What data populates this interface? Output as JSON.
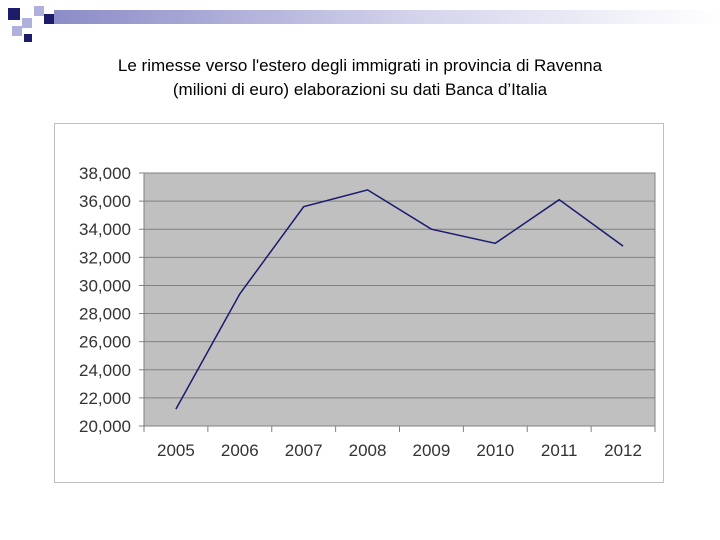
{
  "slide": {
    "title_line1": "Le rimesse verso l'estero degli immigrati in provincia di Ravenna",
    "title_line2": "(milioni di euro) elaborazioni su dati Banca d’Italia"
  },
  "colors": {
    "line": "#1a1a6e",
    "plot_background": "#c0c0c0",
    "grid": "#808080",
    "decoration_navy": "#1c1c6b",
    "decoration_light": "#b0b0dc"
  },
  "chart_data": {
    "type": "line",
    "title": "",
    "xlabel": "",
    "ylabel": "",
    "categories": [
      "2005",
      "2006",
      "2007",
      "2008",
      "2009",
      "2010",
      "2011",
      "2012"
    ],
    "series": [
      {
        "values": [
          21.2,
          29.4,
          35.6,
          36.8,
          34.0,
          33.0,
          36.1,
          32.8
        ]
      }
    ],
    "ylim": [
      20,
      38
    ],
    "yticks": [
      20,
      22,
      24,
      26,
      28,
      30,
      32,
      34,
      36,
      38
    ],
    "ytick_labels": [
      "20,000",
      "22,000",
      "24,000",
      "26,000",
      "28,000",
      "30,000",
      "32,000",
      "34,000",
      "36,000",
      "38,000"
    ],
    "grid": true,
    "legend": "none"
  }
}
